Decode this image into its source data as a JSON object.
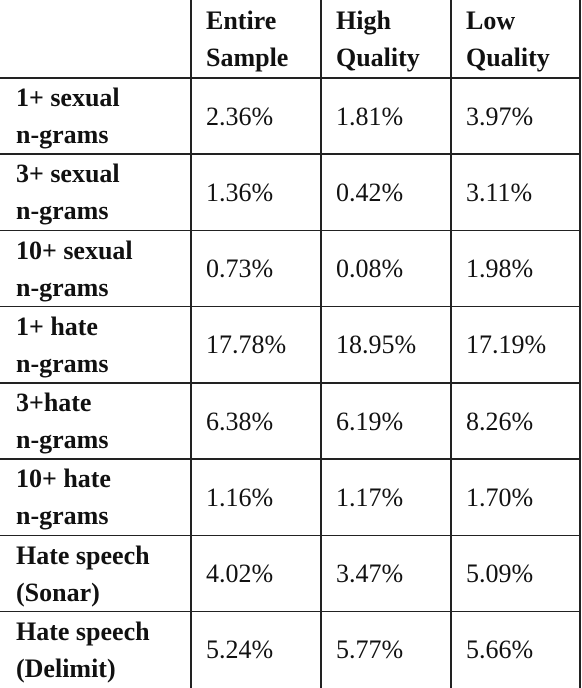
{
  "table": {
    "header": [
      [
        "Entire",
        "Sample"
      ],
      [
        "High",
        "Quality"
      ],
      [
        "Low",
        "Quality"
      ]
    ],
    "rows": [
      {
        "label": [
          "1+ sexual",
          "n-grams"
        ],
        "cells": [
          "2.36%",
          "1.81%",
          "3.97%"
        ]
      },
      {
        "label": [
          "3+ sexual",
          "n-grams"
        ],
        "cells": [
          "1.36%",
          "0.42%",
          "3.11%"
        ]
      },
      {
        "label": [
          "10+ sexual",
          "n-grams"
        ],
        "cells": [
          "0.73%",
          "0.08%",
          "1.98%"
        ]
      },
      {
        "label": [
          "1+ hate",
          "n-grams"
        ],
        "cells": [
          "17.78%",
          "18.95%",
          "17.19%"
        ]
      },
      {
        "label": [
          "3+hate",
          "n-grams"
        ],
        "cells": [
          "6.38%",
          "6.19%",
          "8.26%"
        ]
      },
      {
        "label": [
          "10+ hate",
          "n-grams"
        ],
        "cells": [
          "1.16%",
          "1.17%",
          "1.70%"
        ]
      },
      {
        "label": [
          "Hate speech",
          "(Sonar)"
        ],
        "cells": [
          "4.02%",
          "3.47%",
          "5.09%"
        ]
      },
      {
        "label": [
          "Hate speech",
          "(Delimit)"
        ],
        "cells": [
          "5.24%",
          "5.77%",
          "5.66%"
        ]
      }
    ]
  }
}
